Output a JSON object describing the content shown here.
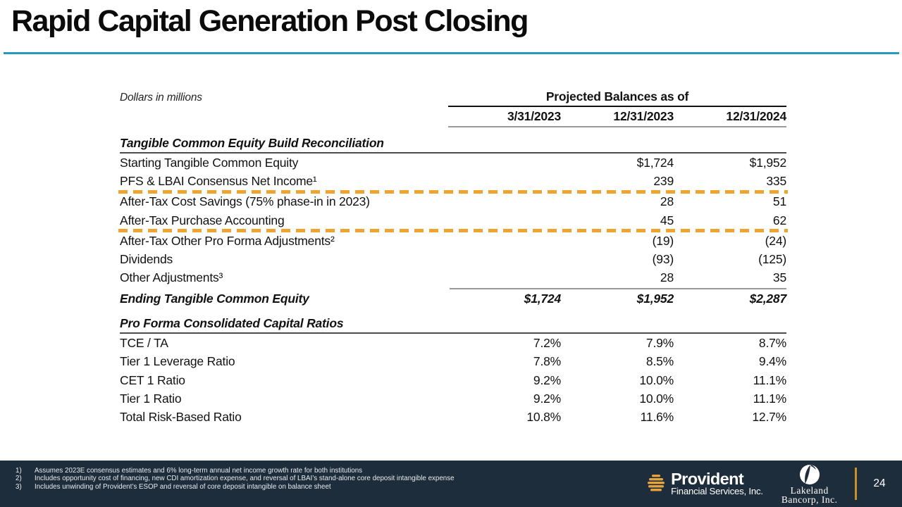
{
  "title": "Rapid Capital Generation Post Closing",
  "table": {
    "units_note": "Dollars in millions",
    "header_group": "Projected Balances as of",
    "columns": [
      "3/31/2023",
      "12/31/2023",
      "12/31/2024"
    ],
    "sections": [
      {
        "header": "Tangible Common Equity Build Reconciliation",
        "rows": [
          {
            "label": "Starting Tangible Common Equity",
            "values": [
              "",
              "$1,724",
              "$1,952"
            ]
          },
          {
            "label": "PFS & LBAI Consensus Net Income¹",
            "values": [
              "",
              "239",
              "335"
            ]
          },
          {
            "label": "After-Tax Cost Savings (75% phase-in in 2023)",
            "values": [
              "",
              "28",
              "51"
            ],
            "dashed_above": true
          },
          {
            "label": "After-Tax Purchase Accounting",
            "values": [
              "",
              "45",
              "62"
            ]
          },
          {
            "label": "After-Tax Other Pro Forma Adjustments²",
            "values": [
              "",
              "(19)",
              "(24)"
            ],
            "dashed_above": true
          },
          {
            "label": "Dividends",
            "values": [
              "",
              "(93)",
              "(125)"
            ]
          },
          {
            "label": "Other Adjustments³",
            "values": [
              "",
              "28",
              "35"
            ]
          },
          {
            "label": "Ending Tangible Common Equity",
            "values": [
              "$1,724",
              "$1,952",
              "$2,287"
            ],
            "total": true
          }
        ]
      },
      {
        "header": "Pro Forma Consolidated Capital Ratios",
        "rows": [
          {
            "label": "TCE / TA",
            "values": [
              "7.2%",
              "7.9%",
              "8.7%"
            ]
          },
          {
            "label": "Tier 1 Leverage Ratio",
            "values": [
              "7.8%",
              "8.5%",
              "9.4%"
            ]
          },
          {
            "label": "CET 1 Ratio",
            "values": [
              "9.2%",
              "10.0%",
              "11.1%"
            ]
          },
          {
            "label": "Tier 1 Ratio",
            "values": [
              "9.2%",
              "10.0%",
              "11.1%"
            ]
          },
          {
            "label": "Total Risk-Based Ratio",
            "values": [
              "10.8%",
              "11.6%",
              "12.7%"
            ]
          }
        ]
      }
    ]
  },
  "footnotes": [
    {
      "num": "1)",
      "text": "Assumes 2023E consensus estimates and 6% long-term annual net income growth rate for both institutions"
    },
    {
      "num": "2)",
      "text": "Includes opportunity cost of financing, new CDI amortization expense, and reversal of LBAI’s stand-alone core deposit intangible expense"
    },
    {
      "num": "3)",
      "text": "Includes unwinding of Provident’s ESOP and reversal of core deposit intangible on balance sheet"
    }
  ],
  "footer": {
    "provident": {
      "name": "Provident",
      "subtitle": "Financial Services, Inc.",
      "icon": "beehive-icon"
    },
    "lakeland": {
      "line1": "Lakeland",
      "line2": "Bancorp, Inc.",
      "icon": "swirl-circle-icon"
    },
    "page_number": "24"
  },
  "colors": {
    "accent_teal": "#2899be",
    "accent_orange": "#efa42f",
    "footer_navy": "#1e2d3c",
    "divider_gold": "#c9912c",
    "provident_gold": "#e5a33c"
  }
}
